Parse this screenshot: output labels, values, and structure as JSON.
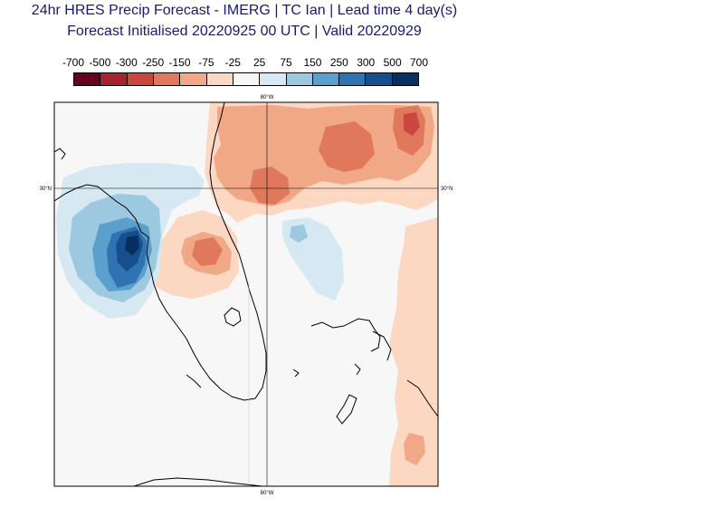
{
  "header": {
    "title_line1": "24hr HRES Precip Forecast - IMERG | TC Ian | Lead time 4 day(s)",
    "title_line2": "Forecast Initialised 20220925 00 UTC | Valid 20220929"
  },
  "legend": {
    "tick_labels": [
      "-700",
      "-500",
      "-300",
      "-250",
      "-150",
      "-75",
      "-25",
      "25",
      "75",
      "150",
      "250",
      "300",
      "500",
      "700"
    ],
    "colors": [
      "#67001f",
      "#a3232f",
      "#c9473e",
      "#e0785c",
      "#f1a886",
      "#fcd7c2",
      "#f7f7f7",
      "#d6e8f2",
      "#9cc9e0",
      "#5b9fcc",
      "#2f73b2",
      "#164f8c",
      "#053061"
    ]
  },
  "map": {
    "gridlines": {
      "lon_label": "80°W",
      "lat_label": "30°N"
    }
  }
}
